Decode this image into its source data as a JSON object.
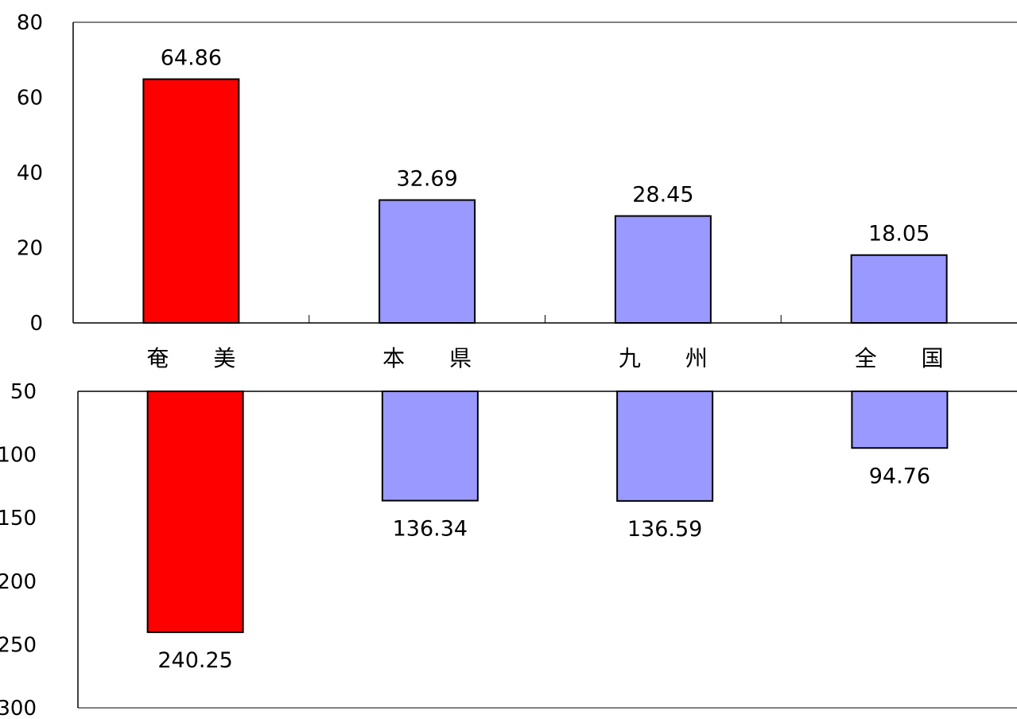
{
  "chart_data": [
    {
      "type": "bar",
      "categories": [
        "奄 美",
        "本 県",
        "九 州",
        "全 国"
      ],
      "series": [
        {
          "values": [
            64.86,
            32.69,
            28.45,
            18.05
          ],
          "colors": [
            "#ff0000",
            "#9999ff",
            "#9999ff",
            "#9999ff"
          ]
        }
      ],
      "ylim": [
        0,
        80
      ],
      "yticks": [
        0,
        20,
        40,
        60,
        80
      ],
      "ytick_labels": [
        "0",
        "20",
        "40",
        "60",
        "80"
      ],
      "data_labels": [
        "64.86",
        "32.69",
        "28.45",
        "18.05"
      ],
      "grid": false
    },
    {
      "type": "bar",
      "orientation": "downward",
      "categories": [
        "奄 美",
        "本 県",
        "九 州",
        "全 国"
      ],
      "series": [
        {
          "values": [
            240.25,
            136.34,
            136.59,
            94.76
          ],
          "colors": [
            "#ff0000",
            "#9999ff",
            "#9999ff",
            "#9999ff"
          ]
        }
      ],
      "ylim": [
        50,
        300
      ],
      "yaxis_inverted": true,
      "yticks": [
        50,
        100,
        150,
        200,
        250,
        300
      ],
      "ytick_labels": [
        "50",
        "100",
        "150",
        "200",
        "250",
        "300"
      ],
      "data_labels": [
        "240.25",
        "136.34",
        "136.59",
        "94.76"
      ],
      "grid": false
    }
  ]
}
